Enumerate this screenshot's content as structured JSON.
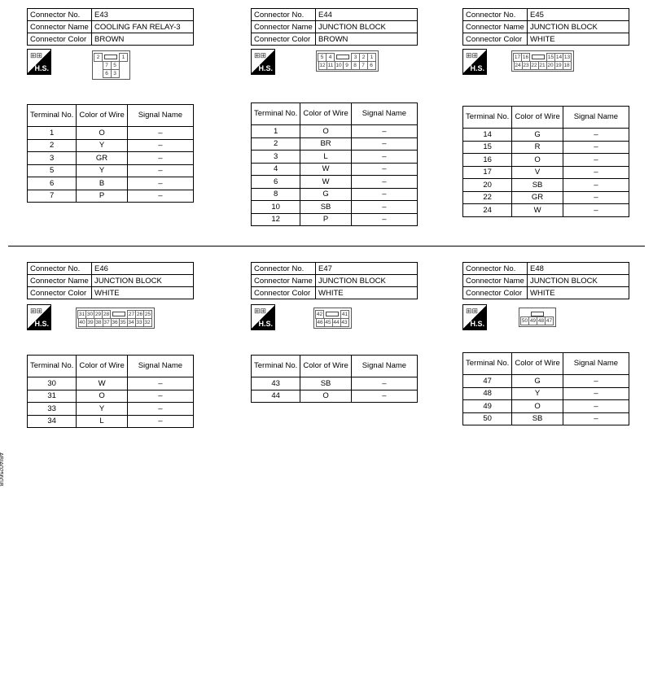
{
  "labels": {
    "connector_no": "Connector No.",
    "connector_name": "Connector Name",
    "connector_color": "Connector Color",
    "terminal_no": "Terminal No.",
    "color_of_wire": "Color of Wire",
    "signal_name": "Signal Name",
    "hs": "H.S."
  },
  "connectors": [
    {
      "no": "E43",
      "name": "COOLING FAN RELAY-3",
      "color": "BROWN",
      "diagram": [
        [
          "2",
          "",
          "1"
        ],
        [
          "7",
          "5"
        ],
        [
          "6",
          "3"
        ]
      ],
      "terminals": [
        [
          "1",
          "O",
          "–"
        ],
        [
          "2",
          "Y",
          "–"
        ],
        [
          "3",
          "GR",
          "–"
        ],
        [
          "5",
          "Y",
          "–"
        ],
        [
          "6",
          "B",
          "–"
        ],
        [
          "7",
          "P",
          "–"
        ]
      ]
    },
    {
      "no": "E44",
      "name": "JUNCTION BLOCK",
      "color": "BROWN",
      "diagram": [
        [
          "5",
          "4",
          "",
          "3",
          "2",
          "1"
        ],
        [
          "12",
          "11",
          "10",
          "9",
          "8",
          "7",
          "6"
        ]
      ],
      "terminals": [
        [
          "1",
          "O",
          "–"
        ],
        [
          "2",
          "BR",
          "–"
        ],
        [
          "3",
          "L",
          "–"
        ],
        [
          "4",
          "W",
          "–"
        ],
        [
          "6",
          "W",
          "–"
        ],
        [
          "8",
          "G",
          "–"
        ],
        [
          "10",
          "SB",
          "–"
        ],
        [
          "12",
          "P",
          "–"
        ]
      ]
    },
    {
      "no": "E45",
      "name": "JUNCTION BLOCK",
      "color": "WHITE",
      "diagram": [
        [
          "17",
          "16",
          "",
          "15",
          "14",
          "13"
        ],
        [
          "24",
          "23",
          "22",
          "21",
          "20",
          "19",
          "18"
        ]
      ],
      "terminals": [
        [
          "14",
          "G",
          "–"
        ],
        [
          "15",
          "R",
          "–"
        ],
        [
          "16",
          "O",
          "–"
        ],
        [
          "17",
          "V",
          "–"
        ],
        [
          "20",
          "SB",
          "–"
        ],
        [
          "22",
          "GR",
          "–"
        ],
        [
          "24",
          "W",
          "–"
        ]
      ]
    },
    {
      "no": "E46",
      "name": "JUNCTION BLOCK",
      "color": "WHITE",
      "diagram": [
        [
          "31",
          "30",
          "29",
          "28",
          "",
          "27",
          "26",
          "25"
        ],
        [
          "40",
          "39",
          "38",
          "37",
          "36",
          "35",
          "34",
          "33",
          "32"
        ]
      ],
      "terminals": [
        [
          "30",
          "W",
          "–"
        ],
        [
          "31",
          "O",
          "–"
        ],
        [
          "33",
          "Y",
          "–"
        ],
        [
          "34",
          "L",
          "–"
        ]
      ]
    },
    {
      "no": "E47",
      "name": "JUNCTION BLOCK",
      "color": "WHITE",
      "diagram": [
        [
          "42",
          "",
          "41"
        ],
        [
          "46",
          "45",
          "44",
          "43"
        ]
      ],
      "terminals": [
        [
          "43",
          "SB",
          "–"
        ],
        [
          "44",
          "O",
          "–"
        ]
      ]
    },
    {
      "no": "E48",
      "name": "JUNCTION BLOCK",
      "color": "WHITE",
      "diagram": [
        [
          ""
        ],
        [
          "50",
          "49",
          "48",
          "47"
        ]
      ],
      "terminals": [
        [
          "47",
          "G",
          "–"
        ],
        [
          "48",
          "Y",
          "–"
        ],
        [
          "49",
          "O",
          "–"
        ],
        [
          "50",
          "SB",
          "–"
        ]
      ]
    }
  ],
  "figure_id": "ABIA0256GB"
}
